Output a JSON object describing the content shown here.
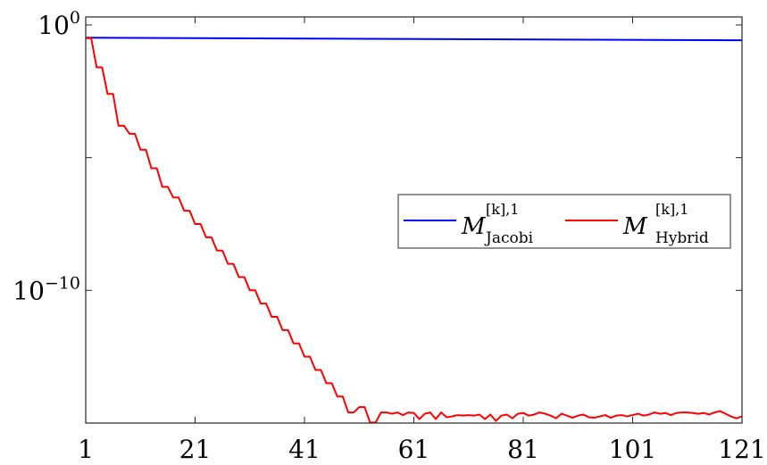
{
  "chart_data": {
    "type": "line",
    "x_ticks": [
      "1",
      "21",
      "41",
      "61",
      "81",
      "101",
      "121"
    ],
    "y_ticks": [
      {
        "base": "10",
        "exp": "0"
      },
      {
        "base": "10",
        "exp": "−10"
      }
    ],
    "xlim": [
      1,
      121
    ],
    "ylog": true,
    "ylim_log10": [
      -15,
      0.3
    ],
    "grid": false,
    "legend_position": "center-right",
    "series": [
      {
        "name": "M^{[k],1}_{Jacobi}",
        "legend": {
          "main": "M",
          "sup": "[k],1",
          "sub": "Jacobi"
        },
        "color": "#0000ff",
        "points": [
          [
            1,
            -0.48
          ],
          [
            121,
            -0.58
          ]
        ]
      },
      {
        "name": "M^{[k],1}_{Hybrid}",
        "legend": {
          "main": "M",
          "sup": "[k],1",
          "sub": "Hybrid"
        },
        "color": "#ff0000",
        "points": [
          [
            1,
            -0.5
          ],
          [
            2,
            -0.5
          ],
          [
            3,
            -1.6
          ],
          [
            4,
            -1.6
          ],
          [
            5,
            -2.6
          ],
          [
            6,
            -2.6
          ],
          [
            7,
            -3.8
          ],
          [
            8,
            -3.8
          ],
          [
            9,
            -4.1
          ],
          [
            10,
            -4.1
          ],
          [
            11,
            -4.7
          ],
          [
            12,
            -4.7
          ],
          [
            13,
            -5.4
          ],
          [
            14,
            -5.4
          ],
          [
            15,
            -6.1
          ],
          [
            16,
            -6.1
          ],
          [
            17,
            -6.5
          ],
          [
            18,
            -6.5
          ],
          [
            19,
            -7.0
          ],
          [
            20,
            -7.0
          ],
          [
            21,
            -7.5
          ],
          [
            22,
            -7.5
          ],
          [
            23,
            -8.0
          ],
          [
            24,
            -8.0
          ],
          [
            25,
            -8.5
          ],
          [
            26,
            -8.5
          ],
          [
            27,
            -9.0
          ],
          [
            28,
            -9.0
          ],
          [
            29,
            -9.5
          ],
          [
            30,
            -9.5
          ],
          [
            31,
            -10.0
          ],
          [
            32,
            -10.0
          ],
          [
            33,
            -10.5
          ],
          [
            34,
            -10.5
          ],
          [
            35,
            -11.0
          ],
          [
            36,
            -11.0
          ],
          [
            37,
            -11.5
          ],
          [
            38,
            -11.5
          ],
          [
            39,
            -12.0
          ],
          [
            40,
            -12.0
          ],
          [
            41,
            -12.5
          ],
          [
            42,
            -12.5
          ],
          [
            43,
            -13.0
          ],
          [
            44,
            -13.0
          ],
          [
            45,
            -13.5
          ],
          [
            46,
            -13.5
          ],
          [
            47,
            -14.0
          ],
          [
            48,
            -14.0
          ],
          [
            49,
            -14.6
          ],
          [
            50,
            -14.6
          ],
          [
            51,
            -14.4
          ],
          [
            52,
            -14.4
          ],
          [
            53,
            -14.98
          ],
          [
            54,
            -14.98
          ],
          [
            55,
            -14.6
          ],
          [
            56,
            -14.6
          ],
          [
            57,
            -14.65
          ],
          [
            58,
            -14.6
          ],
          [
            59,
            -14.7
          ],
          [
            60,
            -14.6
          ],
          [
            61,
            -14.62
          ],
          [
            62,
            -14.85
          ],
          [
            63,
            -14.65
          ],
          [
            64,
            -14.6
          ],
          [
            65,
            -14.85
          ],
          [
            66,
            -14.6
          ],
          [
            67,
            -14.78
          ],
          [
            68,
            -14.75
          ],
          [
            69,
            -14.7
          ],
          [
            70,
            -14.72
          ],
          [
            71,
            -14.7
          ],
          [
            72,
            -14.72
          ],
          [
            73,
            -14.68
          ],
          [
            74,
            -14.85
          ],
          [
            75,
            -14.68
          ],
          [
            76,
            -14.92
          ],
          [
            77,
            -14.72
          ],
          [
            78,
            -14.68
          ],
          [
            79,
            -14.82
          ],
          [
            80,
            -14.65
          ],
          [
            81,
            -14.62
          ],
          [
            82,
            -14.72
          ],
          [
            83,
            -14.68
          ],
          [
            84,
            -14.6
          ],
          [
            85,
            -14.65
          ],
          [
            86,
            -14.72
          ],
          [
            87,
            -14.82
          ],
          [
            88,
            -14.65
          ],
          [
            89,
            -14.72
          ],
          [
            90,
            -14.8
          ],
          [
            91,
            -14.72
          ],
          [
            92,
            -14.68
          ],
          [
            93,
            -14.78
          ],
          [
            94,
            -14.8
          ],
          [
            95,
            -14.75
          ],
          [
            96,
            -14.7
          ],
          [
            97,
            -14.8
          ],
          [
            98,
            -14.72
          ],
          [
            99,
            -14.7
          ],
          [
            100,
            -14.75
          ],
          [
            101,
            -14.7
          ],
          [
            102,
            -14.65
          ],
          [
            103,
            -14.72
          ],
          [
            104,
            -14.68
          ],
          [
            105,
            -14.6
          ],
          [
            106,
            -14.65
          ],
          [
            107,
            -14.62
          ],
          [
            108,
            -14.7
          ],
          [
            109,
            -14.62
          ],
          [
            110,
            -14.6
          ],
          [
            111,
            -14.6
          ],
          [
            112,
            -14.62
          ],
          [
            113,
            -14.65
          ],
          [
            114,
            -14.62
          ],
          [
            115,
            -14.68
          ],
          [
            116,
            -14.6
          ],
          [
            117,
            -14.55
          ],
          [
            118,
            -14.65
          ],
          [
            119,
            -14.75
          ],
          [
            120,
            -14.82
          ],
          [
            121,
            -14.75
          ]
        ]
      }
    ]
  }
}
